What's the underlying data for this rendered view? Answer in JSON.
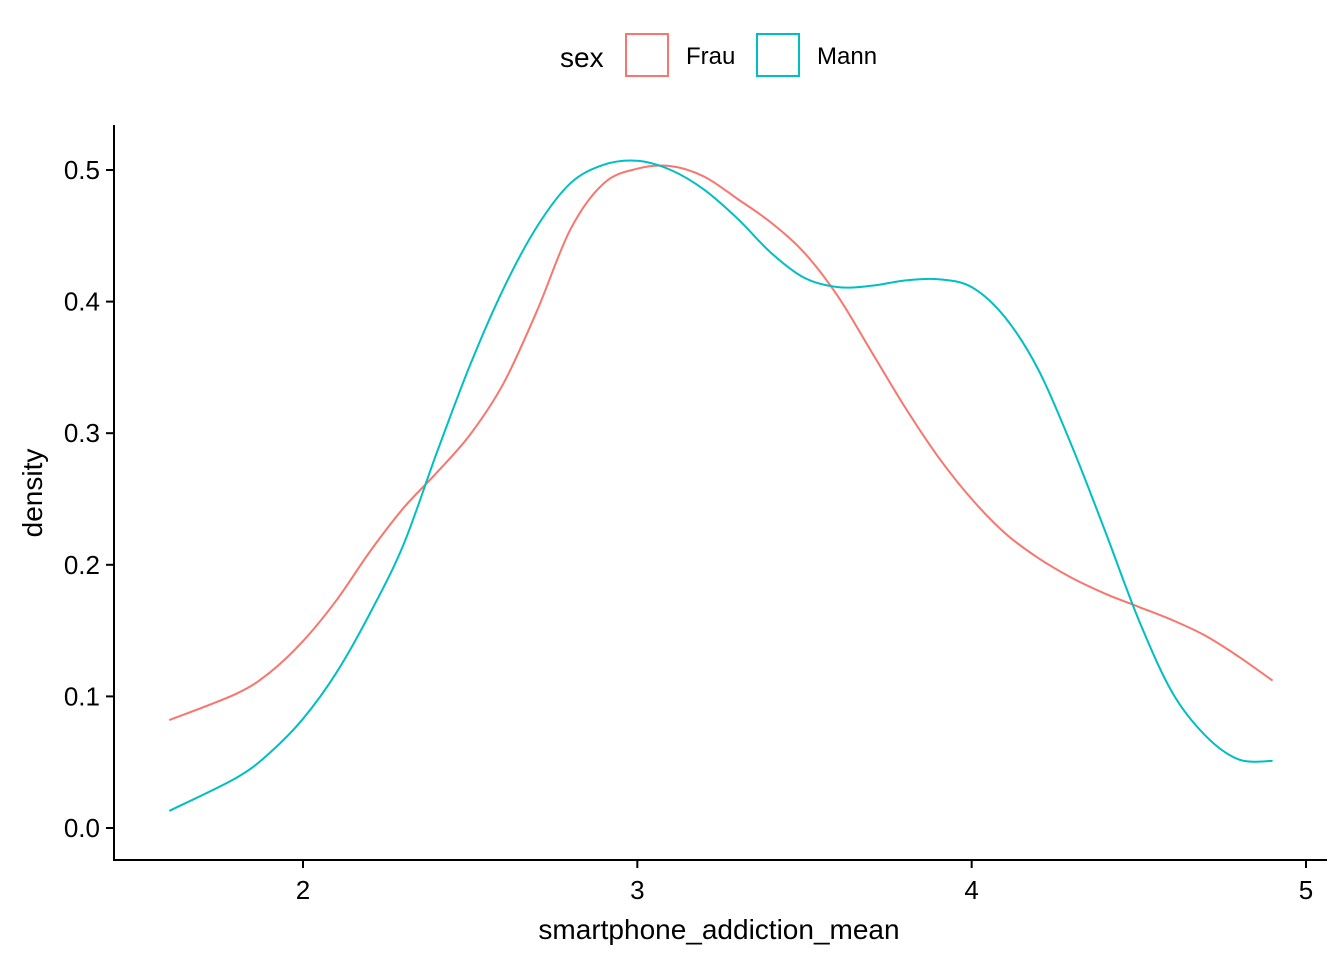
{
  "chart_data": {
    "type": "line",
    "xlabel": "smartphone_addiction_mean",
    "ylabel": "density",
    "xlim": [
      1.57,
      5.05
    ],
    "ylim": [
      0.0,
      0.53
    ],
    "xticks": [
      2,
      3,
      4,
      5
    ],
    "yticks": [
      0.0,
      0.1,
      0.2,
      0.3,
      0.4,
      0.5
    ],
    "ytick_labels": [
      "0.0",
      "0.1",
      "0.2",
      "0.3",
      "0.4",
      "0.5"
    ],
    "grid": false,
    "legend": {
      "title": "sex",
      "placement": "top-center"
    },
    "series": [
      {
        "name": "Frau",
        "color": "#F8766D",
        "x": [
          1.6,
          1.8,
          1.9,
          2.0,
          2.1,
          2.2,
          2.3,
          2.4,
          2.5,
          2.6,
          2.7,
          2.8,
          2.9,
          3.0,
          3.1,
          3.2,
          3.3,
          3.4,
          3.5,
          3.6,
          3.7,
          3.8,
          3.9,
          4.0,
          4.1,
          4.2,
          4.3,
          4.4,
          4.5,
          4.6,
          4.7,
          4.8,
          4.9
        ],
        "y": [
          0.082,
          0.102,
          0.118,
          0.142,
          0.173,
          0.21,
          0.243,
          0.27,
          0.299,
          0.338,
          0.393,
          0.455,
          0.49,
          0.501,
          0.503,
          0.495,
          0.478,
          0.46,
          0.437,
          0.404,
          0.362,
          0.32,
          0.282,
          0.25,
          0.224,
          0.205,
          0.19,
          0.178,
          0.168,
          0.158,
          0.146,
          0.13,
          0.112
        ]
      },
      {
        "name": "Mann",
        "color": "#00BFC4",
        "x": [
          1.6,
          1.8,
          1.9,
          2.0,
          2.1,
          2.2,
          2.3,
          2.4,
          2.5,
          2.6,
          2.7,
          2.8,
          2.9,
          3.0,
          3.1,
          3.2,
          3.3,
          3.4,
          3.5,
          3.6,
          3.7,
          3.8,
          3.9,
          4.0,
          4.1,
          4.2,
          4.3,
          4.4,
          4.5,
          4.6,
          4.7,
          4.8,
          4.9
        ],
        "y": [
          0.013,
          0.038,
          0.057,
          0.083,
          0.118,
          0.163,
          0.215,
          0.285,
          0.352,
          0.41,
          0.457,
          0.49,
          0.504,
          0.507,
          0.5,
          0.485,
          0.463,
          0.437,
          0.418,
          0.411,
          0.412,
          0.416,
          0.417,
          0.411,
          0.388,
          0.348,
          0.29,
          0.225,
          0.158,
          0.103,
          0.07,
          0.052,
          0.051
        ]
      }
    ]
  }
}
